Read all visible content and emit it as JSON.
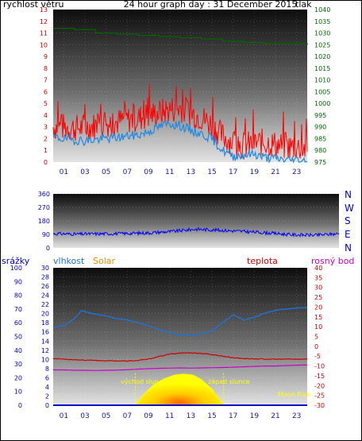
{
  "header": {
    "left_label": "rychlost větru",
    "title": "24 hour graph day : 31 December 2015",
    "right_label": "tlak"
  },
  "colors": {
    "wind_label": "#cc0000",
    "title": "#2a2aaa",
    "pressure": "#006600",
    "wind": "#ff0000",
    "gust": "#1e88e5",
    "direction": "#0000ff",
    "humidity": "#1e73d8",
    "solar": "#ffff00",
    "temperature": "#cc0000",
    "dewpoint": "#cc00cc",
    "rain": "#0000cc",
    "markers": "#ffff00"
  },
  "direction_labels": [
    "N",
    "W",
    "S",
    "E",
    "N"
  ],
  "bottom_labels": {
    "rain": "srážky",
    "humidity": "vlhkost",
    "solar": "Solar",
    "temperature": "teplota",
    "dewpoint": "rosný bod"
  },
  "markers": {
    "sunrise": "východ slunce",
    "sunset": "západ slunce",
    "moonrise": "Moon Rise"
  },
  "chart_data": [
    {
      "type": "line",
      "panel": "wind-pressure",
      "x_ticks": [
        "01",
        "03",
        "05",
        "07",
        "09",
        "11",
        "13",
        "15",
        "17",
        "19",
        "21",
        "23"
      ],
      "xlim": [
        0,
        24
      ],
      "left_axis": {
        "ylim": [
          0,
          13
        ],
        "ticks": [
          "0",
          "1",
          "2",
          "3",
          "4",
          "5",
          "6",
          "7",
          "8",
          "9",
          "10",
          "11",
          "12",
          "13"
        ]
      },
      "right_axis": {
        "ylim": [
          975,
          1040
        ],
        "ticks": [
          "975",
          "980",
          "985",
          "990",
          "995",
          "1000",
          "1005",
          "1010",
          "1015",
          "1020",
          "1025",
          "1030",
          "1035",
          "1040"
        ]
      },
      "series": [
        {
          "name": "rychlost větru",
          "axis": "left",
          "x": [
            0,
            1,
            2,
            3,
            4,
            5,
            6,
            7,
            8,
            9,
            10,
            11,
            12,
            13,
            14,
            15,
            16,
            17,
            18,
            19,
            20,
            21,
            22,
            23,
            24
          ],
          "values": [
            3,
            3,
            2.9,
            3,
            3.1,
            3.3,
            3.4,
            3.6,
            3.7,
            4,
            4.2,
            4.5,
            4.6,
            4.2,
            3.8,
            3.2,
            2.2,
            1.7,
            1.4,
            1.6,
            1.7,
            1.5,
            1.3,
            1.3,
            1.1
          ]
        },
        {
          "name": "",
          "axis": "left",
          "x": [
            0,
            1,
            2,
            3,
            4,
            5,
            6,
            7,
            8,
            9,
            10,
            11,
            12,
            13,
            14,
            15,
            16,
            17,
            18,
            19,
            20,
            21,
            22,
            23,
            24
          ],
          "values": [
            2.1,
            2,
            1.9,
            1.8,
            1.9,
            2,
            2.1,
            2.2,
            2.3,
            2.6,
            3,
            3.3,
            3.1,
            2.7,
            2.4,
            2,
            1,
            0.5,
            0.6,
            0.7,
            0.4,
            0.3,
            0.2,
            0.2,
            0.1
          ]
        },
        {
          "name": "tlak",
          "axis": "right",
          "x": [
            0,
            2,
            4,
            6,
            8,
            10,
            12,
            14,
            16,
            18,
            20,
            22,
            24
          ],
          "values": [
            1032,
            1031.5,
            1030,
            1029.5,
            1029,
            1028.5,
            1028,
            1027.5,
            1026.5,
            1026,
            1025.5,
            1025.5,
            1025
          ]
        }
      ]
    },
    {
      "type": "line",
      "panel": "wind-direction",
      "xlim": [
        0,
        24
      ],
      "ylim": [
        0,
        360
      ],
      "y_ticks": [
        "0",
        "90",
        "180",
        "270",
        "360"
      ],
      "series": [
        {
          "name": "",
          "x": [
            0,
            2,
            4,
            6,
            8,
            10,
            12,
            14,
            16,
            18,
            20,
            22,
            24
          ],
          "values": [
            95,
            92,
            94,
            96,
            100,
            110,
            125,
            118,
            110,
            100,
            88,
            85,
            95
          ]
        }
      ]
    },
    {
      "type": "line",
      "panel": "weather",
      "x_ticks": [
        "01",
        "03",
        "05",
        "07",
        "09",
        "11",
        "13",
        "15",
        "17",
        "19",
        "21",
        "23"
      ],
      "xlim": [
        0,
        24
      ],
      "humidity_axis": {
        "ylim": [
          0,
          100
        ],
        "ticks": [
          "0",
          "10",
          "20",
          "30",
          "40",
          "50",
          "60",
          "70",
          "80",
          "90",
          "100"
        ]
      },
      "rain_axis": {
        "ylim": [
          0,
          30
        ],
        "ticks": [
          "0",
          "2",
          "4",
          "6",
          "8",
          "10",
          "12",
          "14",
          "16",
          "18",
          "20",
          "22",
          "24",
          "26",
          "28",
          "30"
        ]
      },
      "temperature_axis": {
        "ylim": [
          -30,
          40
        ],
        "ticks": [
          "-30",
          "-25",
          "-20",
          "-15",
          "-10",
          "-5",
          "0",
          "5",
          "10",
          "15",
          "20",
          "25",
          "30",
          "35",
          "40"
        ]
      },
      "sunrise_hour": 7.75,
      "sunset_hour": 16.1,
      "series": [
        {
          "name": "vlhkost",
          "axis": "humidity",
          "x": [
            0,
            1,
            2,
            2.7,
            3.5,
            5,
            6,
            7,
            8,
            9,
            10,
            11,
            12,
            13,
            14,
            15,
            16,
            17,
            18,
            19,
            20,
            21,
            22,
            23,
            24
          ],
          "values": [
            57,
            58,
            63,
            69,
            67,
            65,
            63,
            62,
            60,
            58,
            55,
            53,
            51,
            51,
            52,
            54,
            60,
            66,
            62,
            64,
            67,
            69,
            70,
            71,
            71
          ]
        },
        {
          "name": "teplota",
          "axis": "temperature",
          "x": [
            0,
            1,
            2,
            3,
            4,
            5,
            6,
            7,
            8,
            9,
            10,
            11,
            12,
            13,
            14,
            15,
            16,
            17,
            18,
            19,
            20,
            21,
            22,
            23,
            24
          ],
          "values": [
            -6.2,
            -6.5,
            -6.8,
            -7,
            -7.2,
            -7.3,
            -7.4,
            -7.5,
            -7.2,
            -6.5,
            -5.2,
            -4,
            -3.4,
            -3.3,
            -3.6,
            -4.2,
            -5,
            -5.8,
            -6.2,
            -6.4,
            -6.5,
            -6.6,
            -6.5,
            -6.6,
            -6.5
          ]
        },
        {
          "name": "rosný bod",
          "axis": "temperature",
          "x": [
            0,
            1,
            2,
            3,
            4,
            5,
            6,
            7,
            8,
            9,
            10,
            11,
            12,
            13,
            14,
            15,
            16,
            17,
            18,
            19,
            20,
            21,
            22,
            23,
            24
          ],
          "values": [
            -12,
            -12,
            -12.2,
            -12.2,
            -12.3,
            -12.2,
            -12.1,
            -11.9,
            -11.6,
            -11.4,
            -11.2,
            -11.1,
            -11,
            -11.1,
            -11,
            -10.9,
            -10.8,
            -10.6,
            -10.4,
            -10.2,
            -10,
            -10,
            -9.8,
            -9.6,
            -9.5
          ]
        },
        {
          "name": "Solar",
          "axis": "rain",
          "x": [
            7.75,
            8.5,
            9.5,
            10.5,
            11.5,
            12.3,
            13.2,
            14,
            15,
            16.1
          ],
          "values": [
            0,
            2.2,
            4.5,
            5.8,
            6.6,
            6.8,
            6.6,
            5.6,
            3.5,
            0
          ]
        },
        {
          "name": "srážky",
          "axis": "rain",
          "x": [
            0,
            24
          ],
          "values": [
            0,
            0
          ]
        }
      ]
    }
  ]
}
